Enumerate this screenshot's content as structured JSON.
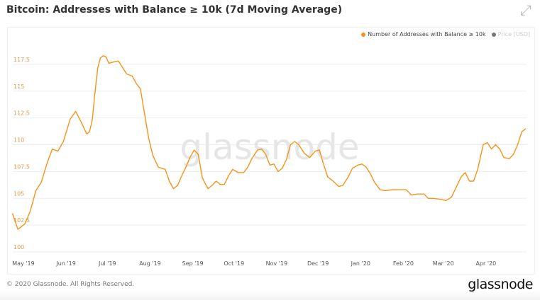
{
  "title": "Bitcoin: Addresses with Balance ≥ 10k (7d Moving Average)",
  "footer": {
    "copyright": "© 2020 Glassnode. All Rights Reserved.",
    "logo": "glassnode"
  },
  "watermark": "glassnode",
  "colors": {
    "series": "#f7931a",
    "price": "#777777",
    "axis_label": "#e09a4a"
  },
  "chart_data": {
    "type": "line",
    "title": "Bitcoin: Addresses with Balance ≥ 10k (7d Moving Average)",
    "xlabel": "",
    "ylabel": "",
    "x_unit": "days since 2019-05-01",
    "ylim": [
      100,
      117.5
    ],
    "y_ticks": [
      {
        "value": 100,
        "label": "100"
      },
      {
        "value": 102.5,
        "label": "102.5"
      },
      {
        "value": 105,
        "label": "105"
      },
      {
        "value": 107.5,
        "label": "107.5"
      },
      {
        "value": 110,
        "label": "110"
      },
      {
        "value": 112.5,
        "label": "112.5"
      },
      {
        "value": 115,
        "label": "115"
      },
      {
        "value": 117.5,
        "label": "117.5"
      }
    ],
    "x_ticks": [
      {
        "day": 0,
        "label": "May '19"
      },
      {
        "day": 31,
        "label": "Jun '19"
      },
      {
        "day": 61,
        "label": "Jul '19"
      },
      {
        "day": 92,
        "label": "Aug '19"
      },
      {
        "day": 123,
        "label": "Sep '19"
      },
      {
        "day": 153,
        "label": "Oct '19"
      },
      {
        "day": 184,
        "label": "Nov '19"
      },
      {
        "day": 214,
        "label": "Dec '19"
      },
      {
        "day": 245,
        "label": "Jan '20"
      },
      {
        "day": 276,
        "label": "Feb '20"
      },
      {
        "day": 305,
        "label": "Mar '20"
      },
      {
        "day": 336,
        "label": "Apr '20"
      }
    ],
    "grid": true,
    "legend_position": "top-right",
    "legend": [
      {
        "name": "Number of Addresses with Balance ≥ 10k",
        "active": true
      },
      {
        "name": "Price [USD]",
        "active": false
      }
    ],
    "series": [
      {
        "name": "Number of Addresses with Balance ≥ 10k",
        "x": [
          -8,
          -4,
          1,
          5,
          9,
          13,
          17,
          21,
          25,
          29,
          34,
          38,
          42,
          46,
          48,
          50,
          52,
          54,
          56,
          58,
          60,
          62,
          65,
          69,
          72,
          75,
          79,
          82,
          85,
          88,
          91,
          94,
          98,
          103,
          106,
          109,
          112,
          115,
          118,
          121,
          124,
          127,
          130,
          134,
          137,
          140,
          143,
          146,
          149,
          152,
          156,
          160,
          163,
          166,
          170,
          173,
          176,
          179,
          182,
          185,
          188,
          191,
          194,
          197,
          200,
          204,
          208,
          212,
          215,
          218,
          221,
          225,
          229,
          232,
          236,
          239,
          243,
          246,
          249,
          252,
          255,
          259,
          263,
          268,
          274,
          278,
          282,
          286,
          291,
          294,
          298,
          303,
          307,
          311,
          315,
          318,
          321,
          324,
          327,
          330,
          334,
          337,
          340,
          343,
          346,
          349,
          353,
          356,
          359,
          362,
          365
        ],
        "values": [
          103.6,
          102.1,
          102.6,
          103.8,
          105.7,
          106.5,
          108.2,
          109.6,
          109.4,
          110.3,
          112.4,
          113.1,
          112.1,
          111.0,
          111.2,
          112.3,
          114.9,
          117.2,
          118.1,
          118.3,
          118.2,
          117.6,
          117.7,
          117.8,
          117.2,
          116.6,
          116.4,
          115.7,
          115.2,
          112.9,
          110.6,
          109.0,
          107.9,
          107.7,
          106.6,
          105.9,
          106.2,
          107.1,
          107.9,
          108.8,
          109.5,
          109.1,
          106.9,
          105.9,
          106.2,
          106.6,
          106.3,
          106.3,
          107.1,
          107.7,
          107.4,
          107.4,
          107.9,
          108.7,
          109.5,
          109.6,
          109.1,
          108.1,
          108.2,
          107.5,
          107.8,
          108.6,
          110.0,
          110.3,
          110.0,
          109.2,
          108.8,
          109.4,
          109.5,
          108.2,
          107.0,
          106.6,
          106.1,
          106.2,
          107.0,
          107.8,
          108.1,
          108.2,
          107.9,
          107.3,
          106.5,
          105.8,
          105.7,
          105.8,
          105.8,
          105.8,
          105.3,
          105.4,
          105.4,
          105.0,
          105.0,
          104.9,
          104.8,
          105.1,
          106.2,
          107.0,
          107.4,
          106.6,
          106.6,
          107.7,
          110.0,
          110.2,
          109.6,
          110.0,
          109.6,
          108.8,
          108.7,
          109.1,
          110.0,
          111.2,
          111.5
        ]
      }
    ]
  }
}
